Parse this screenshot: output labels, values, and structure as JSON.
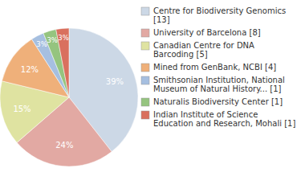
{
  "chart_data": {
    "type": "pie",
    "categories": [
      "Centre for Biodiversity Genomics [13]",
      "University of Barcelona [8]",
      "Canadian Centre for DNA Barcoding [5]",
      "Mined from GenBank, NCBI [4]",
      "Smithsonian Institution, National Museum of Natural History... [1]",
      "Naturalis Biodiversity Center [1]",
      "Indian Institute of Science Education and Research, Mohali [1]"
    ],
    "values": [
      39,
      24,
      15,
      12,
      3,
      3,
      3
    ],
    "value_labels": [
      "39%",
      "24%",
      "15%",
      "12%",
      "3%",
      "3%",
      "3%"
    ],
    "colors": [
      "#ccd8e6",
      "#e2a9a3",
      "#dfe3a1",
      "#efb07a",
      "#a6bfe0",
      "#95c47f",
      "#d9705e"
    ],
    "data_labels": true,
    "legend": "right"
  }
}
